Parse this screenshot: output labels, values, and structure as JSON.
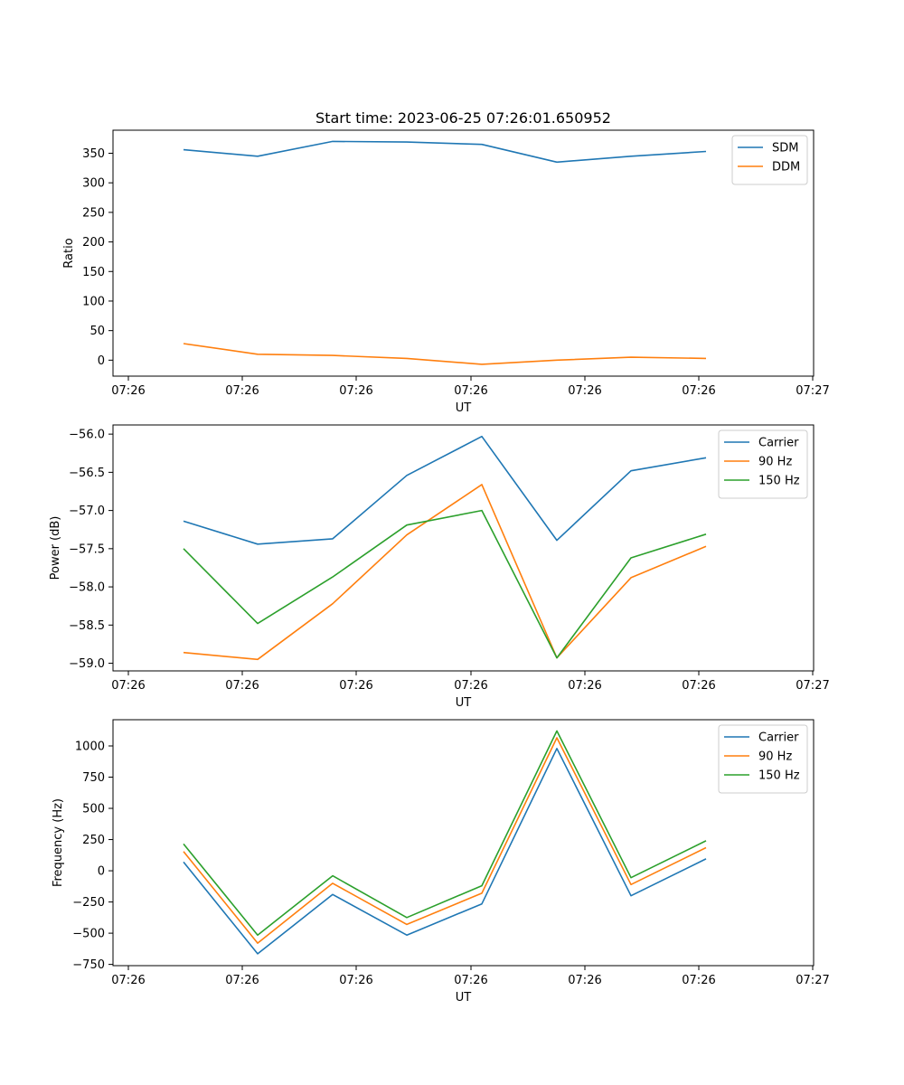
{
  "chart_data": [
    {
      "type": "line",
      "title": "Start time: 2023-06-25 07:26:01.650952",
      "xlabel": "UT",
      "ylabel": "Ratio",
      "x_tick_labels": [
        "07:26",
        "07:26",
        "07:26",
        "07:26",
        "07:26",
        "07:26",
        "07:27"
      ],
      "y_ticks": [
        0,
        50,
        100,
        150,
        200,
        250,
        300,
        350
      ],
      "ylim": [
        -27,
        389
      ],
      "series": [
        {
          "name": "SDM",
          "color": "#1f77b4",
          "values": [
            356,
            345,
            370,
            369,
            365,
            335,
            345,
            353
          ]
        },
        {
          "name": "DDM",
          "color": "#ff7f0e",
          "values": [
            28,
            10,
            8,
            3,
            -7,
            0,
            5,
            3
          ]
        }
      ],
      "legend": "top-right"
    },
    {
      "type": "line",
      "title": "",
      "xlabel": "UT",
      "ylabel": "Power (dB)",
      "x_tick_labels": [
        "07:26",
        "07:26",
        "07:26",
        "07:26",
        "07:26",
        "07:26",
        "07:27"
      ],
      "y_ticks": [
        -59.0,
        -58.5,
        -58.0,
        -57.5,
        -57.0,
        -56.5,
        -56.0
      ],
      "y_tick_labels": [
        "−59.0",
        "−58.5",
        "−58.0",
        "−57.5",
        "−57.0",
        "−56.5",
        "−56.0"
      ],
      "ylim": [
        -59.1,
        -55.88
      ],
      "series": [
        {
          "name": "Carrier",
          "color": "#1f77b4",
          "values": [
            -57.14,
            -57.44,
            -57.37,
            -56.54,
            -56.03,
            -57.39,
            -56.48,
            -56.31
          ]
        },
        {
          "name": "90 Hz",
          "color": "#ff7f0e",
          "values": [
            -58.86,
            -58.95,
            -58.22,
            -57.32,
            -56.66,
            -58.93,
            -57.88,
            -57.47
          ]
        },
        {
          "name": "150 Hz",
          "color": "#2ca02c",
          "values": [
            -57.5,
            -58.48,
            -57.87,
            -57.19,
            -57.0,
            -58.93,
            -57.62,
            -57.31
          ]
        }
      ],
      "legend": "top-right"
    },
    {
      "type": "line",
      "title": "",
      "xlabel": "UT",
      "ylabel": "Frequency (Hz)",
      "x_tick_labels": [
        "07:26",
        "07:26",
        "07:26",
        "07:26",
        "07:26",
        "07:26",
        "07:27"
      ],
      "y_ticks": [
        -750,
        -500,
        -250,
        0,
        250,
        500,
        750,
        1000
      ],
      "y_tick_labels": [
        "−750",
        "−500",
        "−250",
        "0",
        "250",
        "500",
        "750",
        "1000"
      ],
      "ylim": [
        -760,
        1210
      ],
      "series": [
        {
          "name": "Carrier",
          "color": "#1f77b4",
          "values": [
            70,
            -665,
            -190,
            -515,
            -265,
            980,
            -200,
            95
          ]
        },
        {
          "name": "90 Hz",
          "color": "#ff7f0e",
          "values": [
            155,
            -580,
            -100,
            -430,
            -180,
            1065,
            -110,
            185
          ]
        },
        {
          "name": "150 Hz",
          "color": "#2ca02c",
          "values": [
            215,
            -515,
            -40,
            -375,
            -120,
            1120,
            -55,
            240
          ]
        }
      ],
      "legend": "top-right"
    }
  ]
}
